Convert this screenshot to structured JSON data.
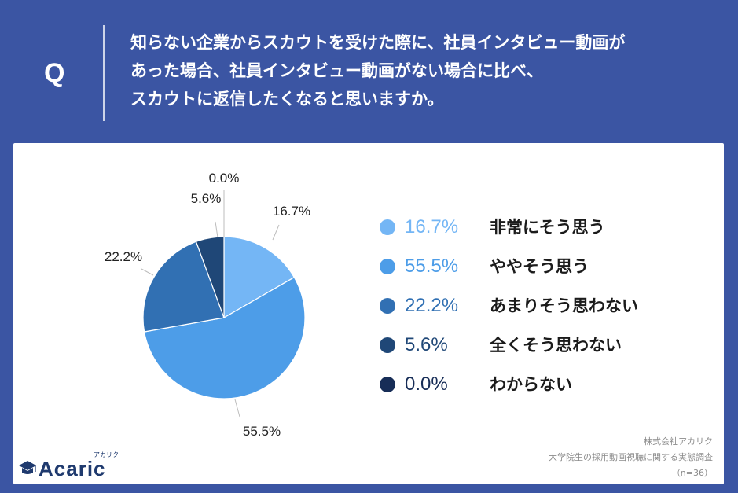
{
  "header": {
    "q_label": "Q",
    "question_lines": [
      "知らない企業からスカウトを受けた際に、社員インタビュー動画が",
      "あった場合、社員インタビュー動画がない場合に比べ、",
      "スカウトに返信したくなると思いますか。"
    ]
  },
  "chart_data": {
    "type": "pie",
    "slices": [
      {
        "label": "非常にそう思う",
        "value": 16.7,
        "display": "16.7%",
        "color": "#74b6f5"
      },
      {
        "label": "ややそう思う",
        "value": 55.5,
        "display": "55.5%",
        "color": "#4d9de8"
      },
      {
        "label": "あまりそう思わない",
        "value": 22.2,
        "display": "22.2%",
        "color": "#3170b3"
      },
      {
        "label": "全くそう思わない",
        "value": 5.6,
        "display": "5.6%",
        "color": "#1f4777"
      },
      {
        "label": "わからない",
        "value": 0.0,
        "display": "0.0%",
        "color": "#172d57"
      }
    ],
    "legend_position": "right"
  },
  "logo": {
    "name": "Acaric",
    "kana": "アカリク"
  },
  "source": {
    "company": "株式会社アカリク",
    "survey": "大学院生の採用動画視聴に関する実態調査",
    "n": "（n=36）"
  },
  "colors": {
    "background": "#3b55a3",
    "panel": "#ffffff",
    "logo": "#1f3a6e"
  }
}
